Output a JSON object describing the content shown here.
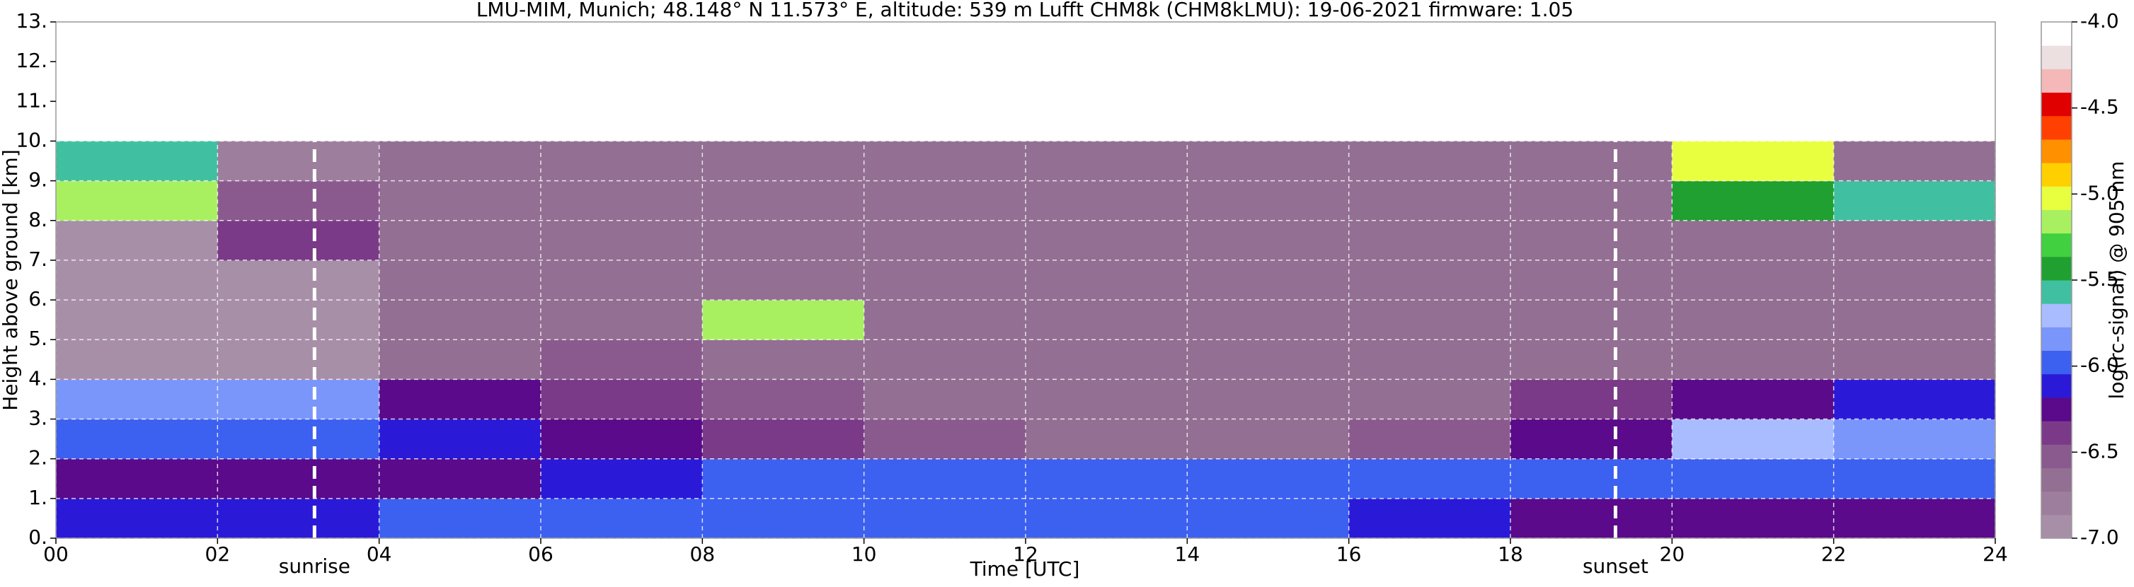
{
  "chart_data": {
    "type": "heatmap",
    "title": "LMU-MIM, Munich; 48.148° N 11.573° E, altitude: 539 m    Lufft CHM8k (CHM8kLMU): 19-06-2021    firmware: 1.05",
    "xlabel": "Time [UTC]",
    "ylabel": "Height above ground [km]",
    "x": [
      0,
      2,
      4,
      6,
      8,
      10,
      12,
      14,
      16,
      18,
      20,
      22,
      24
    ],
    "y": [
      0,
      1,
      2,
      3,
      4,
      5,
      6,
      7,
      8,
      9,
      10
    ],
    "z": [
      [
        -6.1,
        -6.1,
        -6.0,
        -6.0,
        -6.0,
        -6.0,
        -6.0,
        -6.0,
        -6.1,
        -6.2,
        -6.2,
        -6.2
      ],
      [
        -6.3,
        -6.3,
        -6.25,
        -6.1,
        -6.0,
        -6.0,
        -5.95,
        -6.0,
        -6.0,
        -6.0,
        -6.0,
        -6.0
      ],
      [
        -6.0,
        -6.0,
        -6.1,
        -6.3,
        -6.4,
        -6.5,
        -6.6,
        -6.6,
        -6.5,
        -6.2,
        -5.7,
        -5.8
      ],
      [
        -5.8,
        -5.85,
        -6.2,
        -6.4,
        -6.5,
        -6.6,
        -6.6,
        -6.6,
        -6.6,
        -6.4,
        -6.3,
        -6.1
      ],
      [
        -6.9,
        -6.9,
        -6.7,
        -6.5,
        -6.6,
        -6.6,
        -6.6,
        -6.6,
        -6.6,
        -6.6,
        -6.7,
        -6.7
      ],
      [
        -6.9,
        -6.9,
        -6.7,
        -6.7,
        -5.2,
        -6.6,
        -6.6,
        -6.6,
        -6.6,
        -6.6,
        -6.7,
        -6.7
      ],
      [
        -6.9,
        -6.9,
        -6.7,
        -6.6,
        -6.6,
        -6.6,
        -6.6,
        -6.6,
        -6.6,
        -6.6,
        -6.7,
        -6.7
      ],
      [
        -6.9,
        -6.4,
        -6.7,
        -6.6,
        -6.6,
        -6.6,
        -6.6,
        -6.6,
        -6.6,
        -6.6,
        -6.7,
        -6.7
      ],
      [
        -5.2,
        -6.5,
        -6.7,
        -6.6,
        -6.6,
        -6.6,
        -6.6,
        -6.6,
        -6.6,
        -6.6,
        -5.5,
        -5.6
      ],
      [
        -5.6,
        -6.8,
        -6.7,
        -6.6,
        -6.6,
        -6.6,
        -6.6,
        -6.6,
        -6.6,
        -6.6,
        -5.0,
        -6.6
      ]
    ],
    "xlim": [
      0,
      24
    ],
    "ylim": [
      0,
      13
    ],
    "xticks": [
      {
        "value": 0,
        "label": "00"
      },
      {
        "value": 2,
        "label": "02"
      },
      {
        "value": 4,
        "label": "04"
      },
      {
        "value": 6,
        "label": "06"
      },
      {
        "value": 8,
        "label": "08"
      },
      {
        "value": 10,
        "label": "10"
      },
      {
        "value": 12,
        "label": "12"
      },
      {
        "value": 14,
        "label": "14"
      },
      {
        "value": 16,
        "label": "16"
      },
      {
        "value": 18,
        "label": "18"
      },
      {
        "value": 20,
        "label": "20"
      },
      {
        "value": 22,
        "label": "22"
      },
      {
        "value": 24,
        "label": "24"
      }
    ],
    "yticks": [
      {
        "value": 0,
        "label": "0."
      },
      {
        "value": 1,
        "label": "1."
      },
      {
        "value": 2,
        "label": "2."
      },
      {
        "value": 3,
        "label": "3."
      },
      {
        "value": 4,
        "label": "4."
      },
      {
        "value": 5,
        "label": "5."
      },
      {
        "value": 6,
        "label": "6."
      },
      {
        "value": 7,
        "label": "7."
      },
      {
        "value": 8,
        "label": "8."
      },
      {
        "value": 9,
        "label": "9."
      },
      {
        "value": 10,
        "label": "10."
      },
      {
        "value": 11,
        "label": "11."
      },
      {
        "value": 12,
        "label": "12."
      },
      {
        "value": 13,
        "label": "13."
      }
    ],
    "grid": true,
    "annotations": [
      {
        "text": "sunrise",
        "x": 3.2
      },
      {
        "text": "sunset",
        "x": 19.3
      }
    ],
    "colorbar": {
      "label": "log(rc-signal) @ 905 nm",
      "lim": [
        -7,
        -4
      ],
      "ticks": [
        {
          "value": -4,
          "label": "-4.0"
        },
        -4.5,
        {
          "value": -5,
          "label": "-5.0"
        },
        -5.5,
        {
          "value": -6,
          "label": "-6.0"
        },
        -6.5,
        {
          "value": -7,
          "label": "-7.0"
        }
      ],
      "colors": [
        "#a88fa8",
        "#9d7f9d",
        "#936f93",
        "#8a5a8e",
        "#7a3a88",
        "#5a0a8a",
        "#2a1ad8",
        "#3c60f0",
        "#7a96fa",
        "#a8bcff",
        "#40c0a0",
        "#20a030",
        "#40d040",
        "#a8f060",
        "#e8ff40",
        "#ffd000",
        "#ff9000",
        "#ff4000",
        "#e00000",
        "#f4b8b8",
        "#ece0e0",
        "#ffffff"
      ]
    }
  }
}
